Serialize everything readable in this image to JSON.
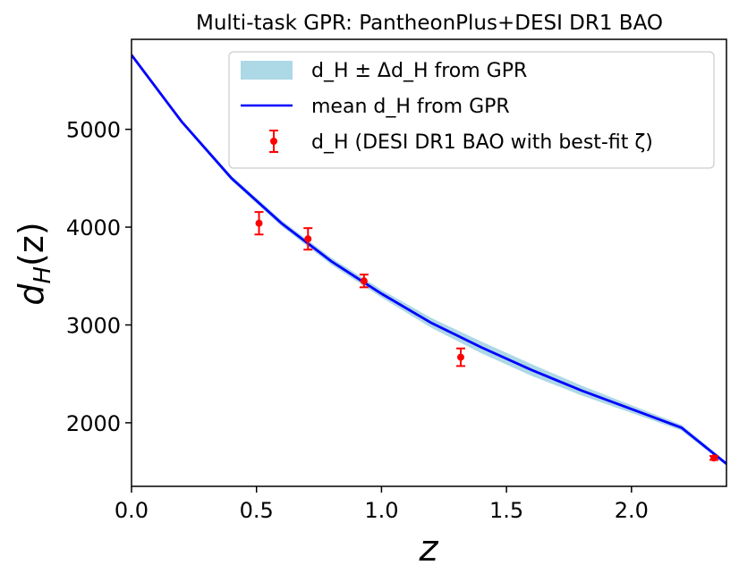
{
  "chart_data": {
    "type": "line",
    "title": "Multi-task GPR: PantheonPlus+DESI DR1 BAO",
    "xlabel": "z",
    "ylabel": "d_H(z)",
    "ylabel_main": "d",
    "ylabel_sub": "H",
    "ylabel_tail": "(z)",
    "xlim": [
      0.0,
      2.38
    ],
    "ylim": [
      1350,
      5920
    ],
    "xticks": [
      0.0,
      0.5,
      1.0,
      1.5,
      2.0
    ],
    "xtick_labels": [
      "0.0",
      "0.5",
      "1.0",
      "1.5",
      "2.0"
    ],
    "yticks": [
      2000,
      3000,
      4000,
      5000
    ],
    "ytick_labels": [
      "2000",
      "3000",
      "4000",
      "5000"
    ],
    "legend_position": "top-right",
    "legend": {
      "band": "d_H ± Δd_H from GPR",
      "mean": "mean d_H from GPR",
      "points": "d_H (DESI DR1 BAO with best-fit ζ)"
    },
    "colors": {
      "band": "#add8e6",
      "mean": "#0000ff",
      "points": "#ff0000"
    },
    "mean_curve": {
      "x": [
        0.0,
        0.2,
        0.4,
        0.6,
        0.8,
        1.0,
        1.2,
        1.4,
        1.6,
        1.8,
        2.0,
        2.2,
        2.38
      ],
      "y": [
        5760,
        5080,
        4500,
        4040,
        3650,
        3320,
        3020,
        2770,
        2540,
        2330,
        2140,
        1950,
        1580
      ]
    },
    "band": {
      "x": [
        0.0,
        0.2,
        0.4,
        0.6,
        0.8,
        1.0,
        1.2,
        1.4,
        1.6,
        1.8,
        2.0,
        2.2,
        2.38
      ],
      "lower": [
        5745,
        5060,
        4475,
        4010,
        3615,
        3280,
        2970,
        2710,
        2480,
        2280,
        2100,
        1920,
        1560
      ],
      "upper": [
        5775,
        5100,
        4525,
        4070,
        3685,
        3360,
        3070,
        2830,
        2600,
        2380,
        2180,
        1980,
        1600
      ]
    },
    "points": {
      "x": [
        0.51,
        0.706,
        0.93,
        1.317,
        2.33
      ],
      "y": [
        4040,
        3880,
        3450,
        2670,
        1640
      ],
      "err": [
        115,
        110,
        65,
        90,
        20
      ]
    }
  }
}
